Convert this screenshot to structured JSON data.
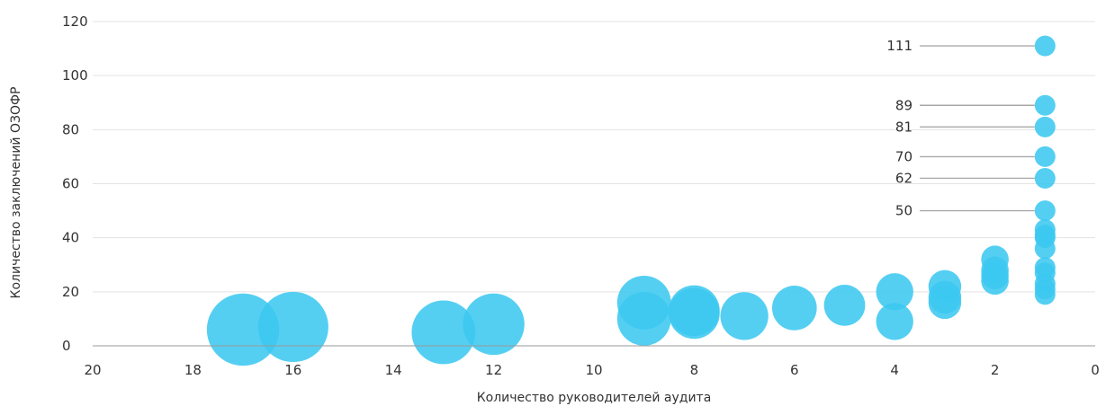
{
  "chart_data": {
    "type": "scatter",
    "variant": "bubble",
    "xlabel": "Количество руководителей аудита",
    "ylabel": "Количество заключений ОЗОФР",
    "xlim": [
      0,
      20
    ],
    "x_reversed": true,
    "ylim": [
      0,
      120
    ],
    "x_ticks": [
      "20",
      "18",
      "16",
      "14",
      "12",
      "10",
      "8",
      "6",
      "4",
      "2",
      "0"
    ],
    "y_ticks": [
      "120",
      "100",
      "80",
      "60",
      "40",
      "20",
      "0"
    ],
    "grid": "horizontal",
    "bubble_color": "#3cc8f0",
    "points": [
      {
        "x": 17,
        "y": 6,
        "size": 17
      },
      {
        "x": 16,
        "y": 7,
        "size": 16
      },
      {
        "x": 13,
        "y": 5,
        "size": 13
      },
      {
        "x": 12,
        "y": 8,
        "size": 12
      },
      {
        "x": 9,
        "y": 16,
        "size": 9
      },
      {
        "x": 9,
        "y": 10,
        "size": 9
      },
      {
        "x": 8,
        "y": 13,
        "size": 8
      },
      {
        "x": 8,
        "y": 12,
        "size": 8
      },
      {
        "x": 7,
        "y": 11,
        "size": 7
      },
      {
        "x": 6,
        "y": 14,
        "size": 6
      },
      {
        "x": 5,
        "y": 15,
        "size": 5
      },
      {
        "x": 4,
        "y": 20,
        "size": 4
      },
      {
        "x": 4,
        "y": 9,
        "size": 4
      },
      {
        "x": 3,
        "y": 22,
        "size": 3
      },
      {
        "x": 3,
        "y": 18,
        "size": 3
      },
      {
        "x": 3,
        "y": 16,
        "size": 3
      },
      {
        "x": 2,
        "y": 32,
        "size": 2
      },
      {
        "x": 2,
        "y": 28,
        "size": 2
      },
      {
        "x": 2,
        "y": 26,
        "size": 2
      },
      {
        "x": 2,
        "y": 24,
        "size": 2
      },
      {
        "x": 1,
        "y": 111,
        "size": 1
      },
      {
        "x": 1,
        "y": 89,
        "size": 1
      },
      {
        "x": 1,
        "y": 81,
        "size": 1
      },
      {
        "x": 1,
        "y": 70,
        "size": 1
      },
      {
        "x": 1,
        "y": 62,
        "size": 1
      },
      {
        "x": 1,
        "y": 50,
        "size": 1
      },
      {
        "x": 1,
        "y": 43,
        "size": 1
      },
      {
        "x": 1,
        "y": 41,
        "size": 1
      },
      {
        "x": 1,
        "y": 40,
        "size": 1
      },
      {
        "x": 1,
        "y": 36,
        "size": 1
      },
      {
        "x": 1,
        "y": 29,
        "size": 1
      },
      {
        "x": 1,
        "y": 27,
        "size": 1
      },
      {
        "x": 1,
        "y": 23,
        "size": 1
      },
      {
        "x": 1,
        "y": 21,
        "size": 1
      },
      {
        "x": 1,
        "y": 19,
        "size": 1
      }
    ],
    "annotations": [
      {
        "text": "111",
        "x": 1,
        "y": 111
      },
      {
        "text": "89",
        "x": 1,
        "y": 89
      },
      {
        "text": "81",
        "x": 1,
        "y": 81
      },
      {
        "text": "70",
        "x": 1,
        "y": 70
      },
      {
        "text": "62",
        "x": 1,
        "y": 62
      },
      {
        "text": "50",
        "x": 1,
        "y": 50
      }
    ]
  }
}
